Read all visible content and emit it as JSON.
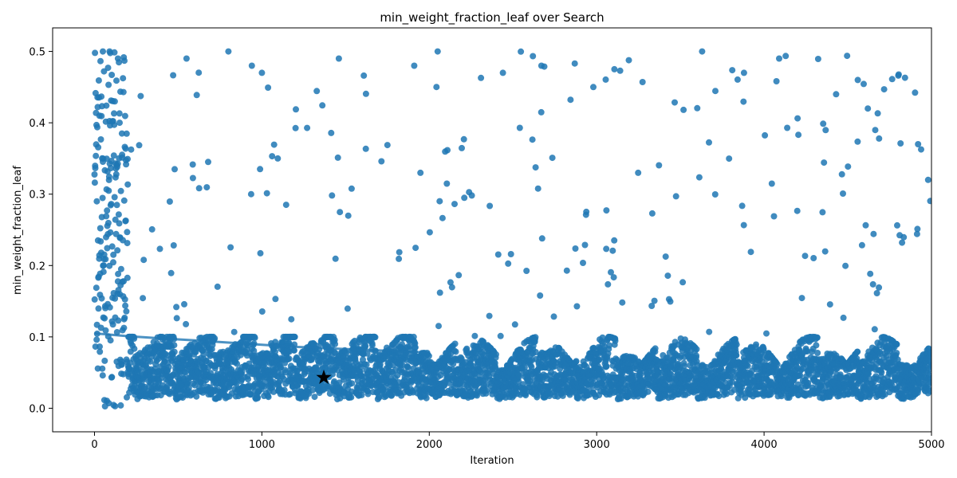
{
  "chart_data": {
    "type": "scatter",
    "title": "min_weight_fraction_leaf over Search",
    "xlabel": "Iteration",
    "ylabel": "min_weight_fraction_leaf",
    "xlim": [
      -250,
      5000
    ],
    "ylim": [
      -0.033,
      0.533
    ],
    "x_ticks": [
      0,
      1000,
      2000,
      3000,
      4000,
      5000
    ],
    "x_tick_labels": [
      "0",
      "1000",
      "2000",
      "3000",
      "4000",
      "5000"
    ],
    "y_ticks": [
      0.0,
      0.1,
      0.2,
      0.3,
      0.4,
      0.5
    ],
    "y_tick_labels": [
      "0.0",
      "0.1",
      "0.2",
      "0.3",
      "0.4",
      "0.5"
    ],
    "grid": false,
    "point_color": "#1f77b4",
    "trend_line": {
      "x": [
        0,
        200,
        400,
        600,
        800,
        1000,
        1200,
        1400,
        1600,
        1800,
        2000
      ],
      "y": [
        0.105,
        0.101,
        0.098,
        0.095,
        0.092,
        0.089,
        0.086,
        0.084,
        0.082,
        0.08,
        0.078
      ]
    },
    "best_point": {
      "x": 1370,
      "y": 0.043,
      "marker": "star"
    },
    "scatter_summary": {
      "n_points": 5000,
      "sample_points": [
        [
          50,
          0.5
        ],
        [
          90,
          0.5
        ],
        [
          140,
          0.49
        ],
        [
          550,
          0.49
        ],
        [
          800,
          0.5
        ],
        [
          940,
          0.48
        ],
        [
          1000,
          0.47
        ],
        [
          1460,
          0.49
        ],
        [
          1910,
          0.48
        ],
        [
          2050,
          0.5
        ],
        [
          2440,
          0.47
        ],
        [
          2670,
          0.48
        ],
        [
          2980,
          0.45
        ],
        [
          3630,
          0.5
        ],
        [
          3880,
          0.47
        ],
        [
          4090,
          0.49
        ],
        [
          4430,
          0.44
        ],
        [
          4560,
          0.46
        ],
        [
          4620,
          0.42
        ],
        [
          4920,
          0.37
        ],
        [
          4980,
          0.32
        ],
        [
          1370,
          0.043
        ]
      ]
    }
  }
}
